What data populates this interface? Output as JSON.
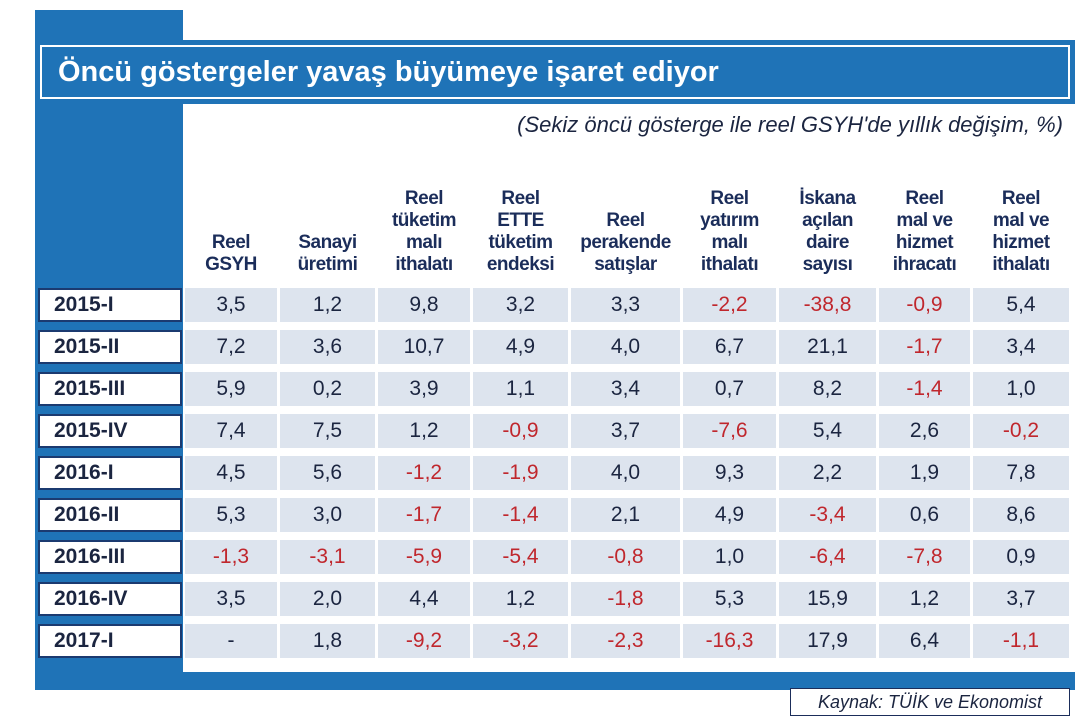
{
  "title": "Öncü göstergeler yavaş büyümeye işaret ediyor",
  "subtitle": "(Sekiz öncü gösterge ile reel GSYH'de yıllık değişim, %)",
  "source": "Kaynak: TÜİK ve Ekonomist",
  "negative_color": "#c0272d",
  "table": {
    "columns": [
      {
        "lines": [
          "Reel",
          "GSYH"
        ]
      },
      {
        "lines": [
          "Sanayi",
          "üretimi"
        ]
      },
      {
        "lines": [
          "Reel",
          "tüketim",
          "malı",
          "ithalatı"
        ]
      },
      {
        "lines": [
          "Reel",
          "ETTE",
          "tüketim",
          "endeksi"
        ]
      },
      {
        "lines": [
          "Reel",
          "perakende",
          "satışlar"
        ]
      },
      {
        "lines": [
          "Reel",
          "yatırım",
          "malı",
          "ithalatı"
        ]
      },
      {
        "lines": [
          "İskana",
          "açılan",
          "daire",
          "sayısı"
        ]
      },
      {
        "lines": [
          "Reel",
          "mal ve",
          "hizmet",
          "ihracatı"
        ]
      },
      {
        "lines": [
          "Reel",
          "mal ve",
          "hizmet",
          "ithalatı"
        ]
      }
    ],
    "rows": [
      {
        "label": "2015-I",
        "values": [
          "3,5",
          "1,2",
          "9,8",
          "3,2",
          "3,3",
          "-2,2",
          "-38,8",
          "-0,9",
          "5,4"
        ]
      },
      {
        "label": "2015-II",
        "values": [
          "7,2",
          "3,6",
          "10,7",
          "4,9",
          "4,0",
          "6,7",
          "21,1",
          "-1,7",
          "3,4"
        ]
      },
      {
        "label": "2015-III",
        "values": [
          "5,9",
          "0,2",
          "3,9",
          "1,1",
          "3,4",
          "0,7",
          "8,2",
          "-1,4",
          "1,0"
        ]
      },
      {
        "label": "2015-IV",
        "values": [
          "7,4",
          "7,5",
          "1,2",
          "-0,9",
          "3,7",
          "-7,6",
          "5,4",
          "2,6",
          "-0,2"
        ]
      },
      {
        "label": "2016-I",
        "values": [
          "4,5",
          "5,6",
          "-1,2",
          "-1,9",
          "4,0",
          "9,3",
          "2,2",
          "1,9",
          "7,8"
        ]
      },
      {
        "label": "2016-II",
        "values": [
          "5,3",
          "3,0",
          "-1,7",
          "-1,4",
          "2,1",
          "4,9",
          "-3,4",
          "0,6",
          "8,6"
        ]
      },
      {
        "label": "2016-III",
        "values": [
          "-1,3",
          "-3,1",
          "-5,9",
          "-5,4",
          "-0,8",
          "1,0",
          "-6,4",
          "-7,8",
          "0,9"
        ]
      },
      {
        "label": "2016-IV",
        "values": [
          "3,5",
          "2,0",
          "4,4",
          "1,2",
          "-1,8",
          "5,3",
          "15,9",
          "1,2",
          "3,7"
        ]
      },
      {
        "label": "2017-I",
        "values": [
          "-",
          "1,8",
          "-9,2",
          "-3,2",
          "-2,3",
          "-16,3",
          "17,9",
          "6,4",
          "-1,1"
        ]
      }
    ]
  }
}
